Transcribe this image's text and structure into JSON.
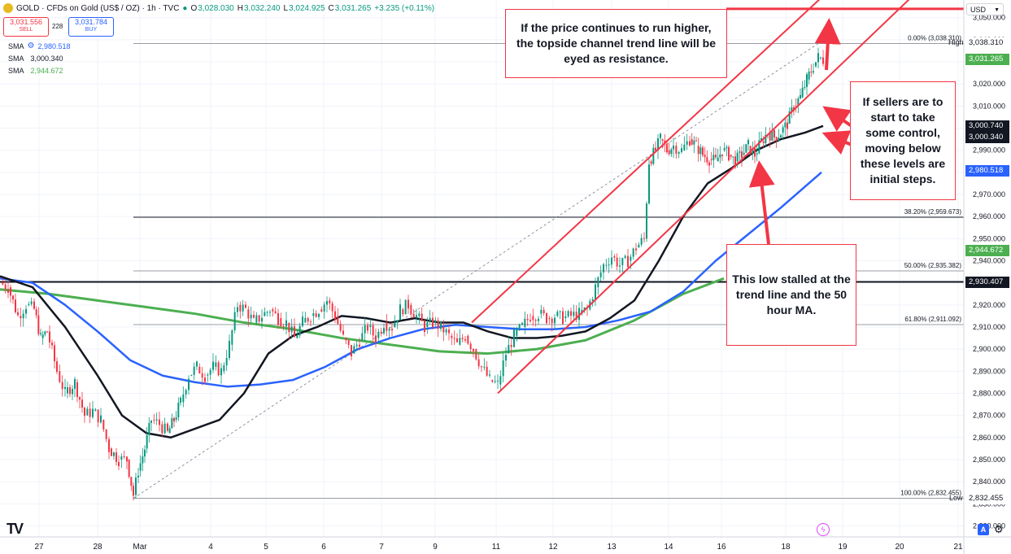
{
  "header": {
    "symbol": "GOLD · CFDs on Gold (US$ / OZ) · 1h · TVC",
    "open_label": "O",
    "open": "3,028.030",
    "high_label": "H",
    "high": "3,032.240",
    "low_label": "L",
    "low": "3,024.925",
    "close_label": "C",
    "close": "3,031.265",
    "change": "+3.235 (+0.11%)"
  },
  "quote": {
    "sell_price": "3,031.556",
    "sell_label": "SELL",
    "spread": "228",
    "buy_price": "3,031.784",
    "buy_label": "BUY"
  },
  "indicators": [
    {
      "label": "SMA",
      "value": "2,980.518",
      "color": "#2962ff"
    },
    {
      "label": "SMA",
      "value": "3,000.340",
      "color": "#131722"
    },
    {
      "label": "SMA",
      "value": "2,944.672",
      "color": "#4caf50"
    }
  ],
  "currency": "USD",
  "callouts": {
    "top": "If the price continues to run higher, the topside channel trend line will be eyed as resistance.",
    "right": "If sellers are to start to take some control, moving below these levels are initial steps.",
    "bottom": "This low stalled at the trend line and the 50 hour MA."
  },
  "price_tags": {
    "high_label": "High",
    "high": "3,038.310",
    "last": "3,031.265",
    "sma_black_a": "3,000.740",
    "sma_black_b": "3,000.340",
    "sma_blue": "2,980.518",
    "sma_green": "2,944.672",
    "hline": "2,930.407",
    "low_label": "Low",
    "low": "2,832.455"
  },
  "fib_labels": [
    {
      "text": "0.00% (3,038.310)",
      "value": 3038.31
    },
    {
      "text": "38.20% (2,959.673)",
      "value": 2959.673
    },
    {
      "text": "50.00% (2,935.382)",
      "value": 2935.382
    },
    {
      "text": "61.80% (2,911.092)",
      "value": 2911.092
    },
    {
      "text": "100.00% (2,832.455)",
      "value": 2832.455
    }
  ],
  "controls": {
    "auto": "A",
    "gear_icon": "⚙",
    "logo": "TV"
  },
  "colors": {
    "up": "#089981",
    "down": "#f23645",
    "sma_fast": "#131722",
    "sma_mid": "#2962ff",
    "sma_slow": "#4caf50",
    "channel": "#f23645"
  },
  "chart_data": {
    "type": "candlestick",
    "x_ticks": [
      "27",
      "28",
      "Mar",
      "4",
      "5",
      "6",
      "7",
      "9",
      "11",
      "12",
      "13",
      "14",
      "16",
      "18",
      "19",
      "20",
      "21"
    ],
    "y_ticks": [
      2820,
      2830,
      2840,
      2850,
      2860,
      2870,
      2880,
      2890,
      2900,
      2910,
      2920,
      2930,
      2940,
      2950,
      2960,
      2970,
      2980,
      2990,
      3000,
      3010,
      3020,
      3030,
      3040,
      3050
    ],
    "ylim": [
      2815,
      3058
    ],
    "x_range": [
      0,
      1185
    ],
    "price_path": [
      [
        0,
        2930
      ],
      [
        10,
        2928
      ],
      [
        22,
        2915
      ],
      [
        32,
        2920
      ],
      [
        42,
        2918
      ],
      [
        50,
        2905
      ],
      [
        58,
        2908
      ],
      [
        70,
        2890
      ],
      [
        80,
        2880
      ],
      [
        92,
        2885
      ],
      [
        104,
        2870
      ],
      [
        114,
        2872
      ],
      [
        124,
        2868
      ],
      [
        134,
        2855
      ],
      [
        146,
        2850
      ],
      [
        156,
        2850
      ],
      [
        164,
        2834
      ],
      [
        170,
        2845
      ],
      [
        178,
        2855
      ],
      [
        186,
        2868
      ],
      [
        196,
        2866
      ],
      [
        206,
        2862
      ],
      [
        214,
        2868
      ],
      [
        222,
        2876
      ],
      [
        232,
        2888
      ],
      [
        242,
        2892
      ],
      [
        252,
        2888
      ],
      [
        262,
        2892
      ],
      [
        272,
        2890
      ],
      [
        282,
        2902
      ],
      [
        292,
        2920
      ],
      [
        302,
        2918
      ],
      [
        312,
        2912
      ],
      [
        322,
        2915
      ],
      [
        332,
        2918
      ],
      [
        342,
        2914
      ],
      [
        352,
        2912
      ],
      [
        362,
        2905
      ],
      [
        372,
        2912
      ],
      [
        382,
        2915
      ],
      [
        392,
        2918
      ],
      [
        402,
        2922
      ],
      [
        412,
        2915
      ],
      [
        422,
        2905
      ],
      [
        432,
        2898
      ],
      [
        442,
        2904
      ],
      [
        452,
        2910
      ],
      [
        462,
        2905
      ],
      [
        472,
        2912
      ],
      [
        482,
        2910
      ],
      [
        492,
        2918
      ],
      [
        502,
        2920
      ],
      [
        512,
        2915
      ],
      [
        522,
        2910
      ],
      [
        532,
        2912
      ],
      [
        542,
        2910
      ],
      [
        552,
        2906
      ],
      [
        562,
        2902
      ],
      [
        572,
        2906
      ],
      [
        582,
        2900
      ],
      [
        592,
        2892
      ],
      [
        602,
        2886
      ],
      [
        612,
        2884
      ],
      [
        622,
        2898
      ],
      [
        632,
        2906
      ],
      [
        642,
        2910
      ],
      [
        652,
        2915
      ],
      [
        662,
        2916
      ],
      [
        672,
        2914
      ],
      [
        682,
        2915
      ],
      [
        692,
        2914
      ],
      [
        702,
        2915
      ],
      [
        712,
        2916
      ],
      [
        722,
        2918
      ],
      [
        732,
        2928
      ],
      [
        742,
        2938
      ],
      [
        752,
        2942
      ],
      [
        762,
        2938
      ],
      [
        772,
        2940
      ],
      [
        782,
        2946
      ],
      [
        792,
        2950
      ],
      [
        798,
        2985
      ],
      [
        806,
        2990
      ],
      [
        812,
        2995
      ],
      [
        820,
        2990
      ],
      [
        828,
        2992
      ],
      [
        838,
        2990
      ],
      [
        848,
        2995
      ],
      [
        856,
        2992
      ],
      [
        864,
        2988
      ],
      [
        872,
        2986
      ],
      [
        880,
        2985
      ],
      [
        888,
        2990
      ],
      [
        896,
        2988
      ],
      [
        904,
        2985
      ],
      [
        912,
        2988
      ],
      [
        920,
        2992
      ],
      [
        928,
        2988
      ],
      [
        936,
        2994
      ],
      [
        944,
        2998
      ],
      [
        952,
        2996
      ],
      [
        960,
        2998
      ],
      [
        968,
        3002
      ],
      [
        976,
        3010
      ],
      [
        984,
        3014
      ],
      [
        992,
        3022
      ],
      [
        1000,
        3028
      ],
      [
        1006,
        3032
      ],
      [
        1012,
        3031
      ]
    ],
    "sma_50": [
      [
        0,
        2933
      ],
      [
        40,
        2928
      ],
      [
        80,
        2910
      ],
      [
        120,
        2888
      ],
      [
        150,
        2870
      ],
      [
        180,
        2862
      ],
      [
        210,
        2860
      ],
      [
        240,
        2864
      ],
      [
        270,
        2868
      ],
      [
        300,
        2880
      ],
      [
        330,
        2898
      ],
      [
        360,
        2906
      ],
      [
        390,
        2910
      ],
      [
        420,
        2915
      ],
      [
        450,
        2914
      ],
      [
        480,
        2912
      ],
      [
        510,
        2914
      ],
      [
        540,
        2912
      ],
      [
        570,
        2912
      ],
      [
        600,
        2908
      ],
      [
        630,
        2905
      ],
      [
        660,
        2905
      ],
      [
        690,
        2906
      ],
      [
        720,
        2908
      ],
      [
        750,
        2914
      ],
      [
        780,
        2922
      ],
      [
        810,
        2940
      ],
      [
        840,
        2960
      ],
      [
        870,
        2975
      ],
      [
        900,
        2982
      ],
      [
        930,
        2990
      ],
      [
        960,
        2995
      ],
      [
        990,
        2998
      ],
      [
        1012,
        3001
      ]
    ],
    "sma_100": [
      [
        0,
        2932
      ],
      [
        40,
        2930
      ],
      [
        80,
        2920
      ],
      [
        120,
        2908
      ],
      [
        160,
        2895
      ],
      [
        200,
        2888
      ],
      [
        240,
        2885
      ],
      [
        280,
        2883
      ],
      [
        320,
        2884
      ],
      [
        360,
        2886
      ],
      [
        400,
        2892
      ],
      [
        440,
        2900
      ],
      [
        480,
        2905
      ],
      [
        520,
        2909
      ],
      [
        560,
        2911
      ],
      [
        600,
        2910
      ],
      [
        640,
        2909
      ],
      [
        680,
        2909
      ],
      [
        720,
        2910
      ],
      [
        760,
        2913
      ],
      [
        800,
        2917
      ],
      [
        840,
        2926
      ],
      [
        880,
        2940
      ],
      [
        920,
        2952
      ],
      [
        960,
        2964
      ],
      [
        1010,
        2980
      ]
    ],
    "sma_200": [
      [
        0,
        2927
      ],
      [
        60,
        2925
      ],
      [
        120,
        2922
      ],
      [
        180,
        2919
      ],
      [
        240,
        2916
      ],
      [
        300,
        2912
      ],
      [
        360,
        2909
      ],
      [
        420,
        2905
      ],
      [
        480,
        2902
      ],
      [
        540,
        2899
      ],
      [
        600,
        2898
      ],
      [
        660,
        2900
      ],
      [
        720,
        2904
      ],
      [
        780,
        2913
      ],
      [
        840,
        2925
      ],
      [
        890,
        2932
      ]
    ],
    "annotations": {
      "fib_start": [
        164,
        2832.455
      ],
      "fib_end": [
        1006,
        3038.31
      ],
      "channel_lower": [
        [
          612,
          2880
        ],
        [
          1185,
          3082
        ]
      ],
      "channel_upper": [
        [
          580,
          2912
        ],
        [
          1185,
          3119
        ]
      ],
      "resistance_line": [
        [
          893,
          3054
        ],
        [
          1185,
          3054
        ]
      ],
      "hline": 2930.407
    }
  }
}
